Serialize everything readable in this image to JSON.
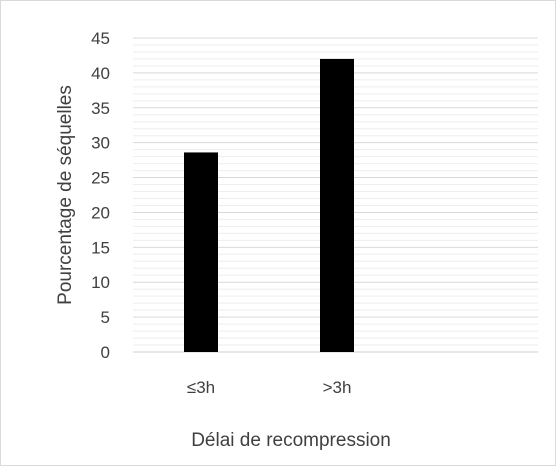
{
  "chart_data": {
    "type": "bar",
    "title": "",
    "xlabel": "Délai de recompression",
    "ylabel": "Pourcentage de séquelles",
    "categories": [
      "≤3h",
      ">3h"
    ],
    "values": [
      28.6,
      42
    ],
    "ylim": [
      0,
      45
    ],
    "yticks": [
      0,
      5,
      10,
      15,
      20,
      25,
      30,
      35,
      40,
      45
    ],
    "grid": true,
    "legend": "none",
    "bar_color": "#000000",
    "grid_color": "#d9d9d9"
  }
}
